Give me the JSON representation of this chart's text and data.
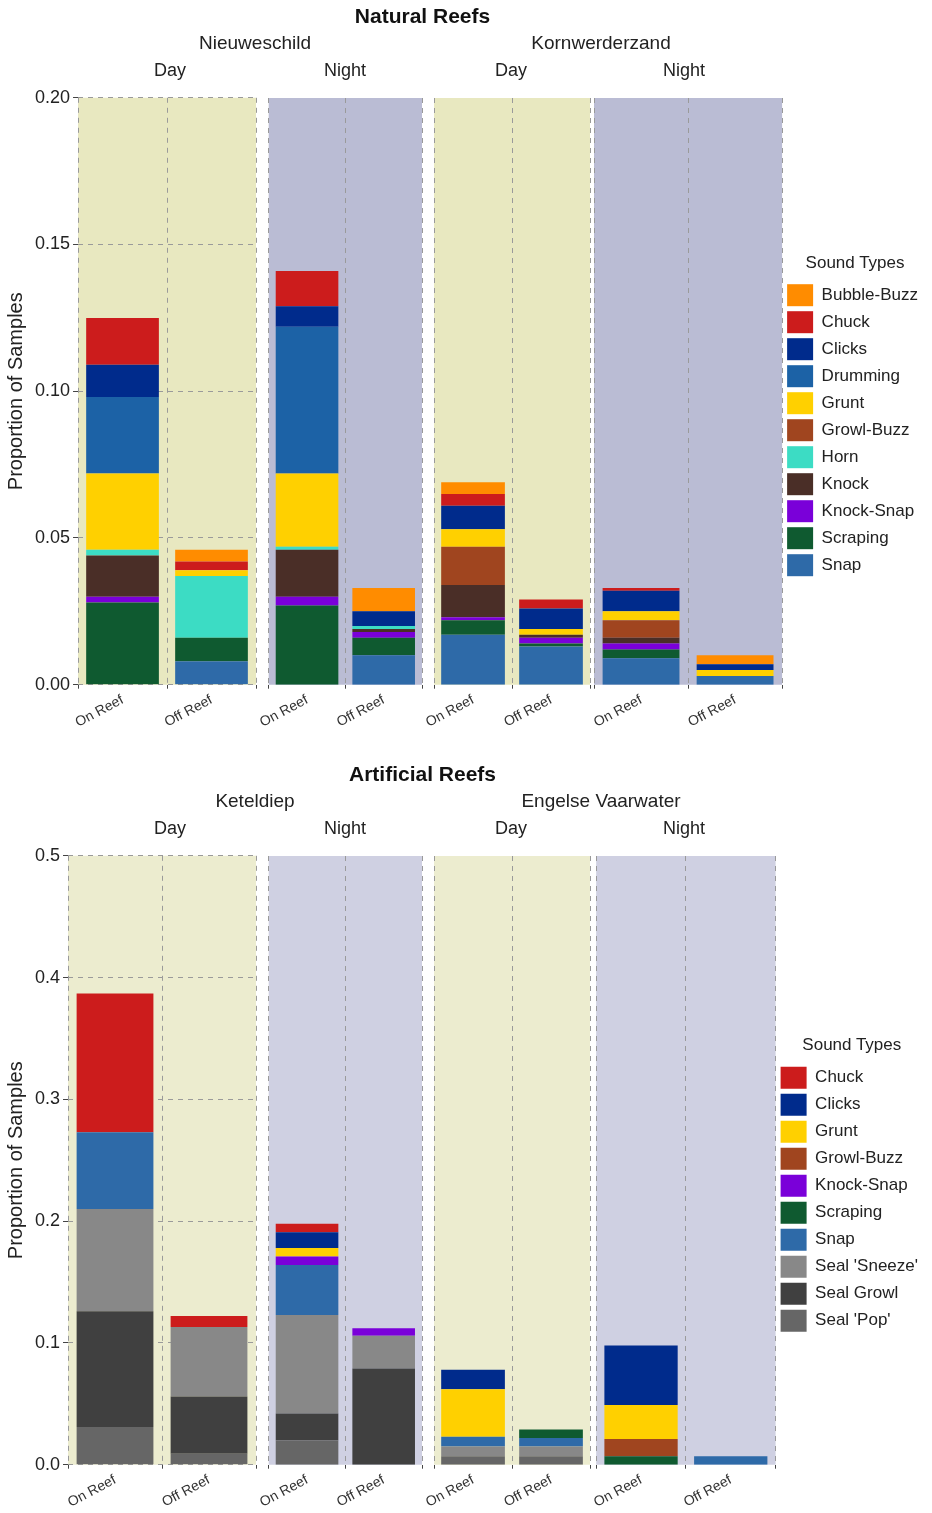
{
  "chart_data": [
    {
      "type": "bar",
      "stacked": true,
      "subtitle": "Nieuweschild",
      "annotations": [
        "Day"
      ],
      "ylabel": "Proportion of Samples",
      "categories": [
        "On Reef",
        "Off Reef"
      ],
      "ylim": [
        0,
        0.2
      ],
      "yticks": [
        {
          "value": 0,
          "label": "0.00"
        },
        {
          "value": 0.05,
          "label": "0.05"
        },
        {
          "value": 0.1,
          "label": "0.10"
        },
        {
          "value": 0.15,
          "label": "0.15"
        },
        {
          "value": 0.2,
          "label": "0.20"
        }
      ],
      "grid": true,
      "series": [
        {
          "color": "#2e6aa8",
          "values": [
            0,
            0.008
          ]
        },
        {
          "color": "#0f5a30",
          "values": [
            0.028,
            0.008
          ]
        },
        {
          "color": "#7a00d9",
          "values": [
            0.002,
            0
          ]
        },
        {
          "color": "#4a2e27",
          "values": [
            0.014,
            0
          ]
        },
        {
          "color": "#3cdcc4",
          "values": [
            0.002,
            0.021
          ]
        },
        {
          "color": "#a0451f",
          "values": [
            0,
            0
          ]
        },
        {
          "color": "#ffd000",
          "values": [
            0.026,
            0.002
          ]
        },
        {
          "color": "#1c62a6",
          "values": [
            0.026,
            0
          ]
        },
        {
          "color": "#002b8c",
          "values": [
            0.011,
            0
          ]
        },
        {
          "color": "#cc1c1c",
          "values": [
            0.016,
            0.003
          ]
        },
        {
          "color": "#ff8c00",
          "values": [
            0,
            0.004
          ]
        }
      ]
    },
    {
      "type": "bar",
      "stacked": true,
      "title": "Natural Reefs",
      "annotations": [
        "Night"
      ],
      "categories": [
        "On Reef",
        "Off Reef"
      ],
      "ylim": [
        0,
        0.2
      ],
      "yticks": [
        {
          "value": 0,
          "label": null
        },
        {
          "value": 0.05,
          "label": null
        },
        {
          "value": 0.1,
          "label": null
        },
        {
          "value": 0.15,
          "label": null
        },
        {
          "value": 0.2,
          "label": null
        }
      ],
      "grid": true,
      "tick_labels": "x",
      "series": [
        {
          "color": "#2e6aa8",
          "values": [
            0,
            0.01
          ]
        },
        {
          "color": "#0f5a30",
          "values": [
            0.027,
            0.006
          ]
        },
        {
          "color": "#7a00d9",
          "values": [
            0.003,
            0.002
          ]
        },
        {
          "color": "#4a2e27",
          "values": [
            0.016,
            0.001
          ]
        },
        {
          "color": "#3cdcc4",
          "values": [
            0.001,
            0.001
          ]
        },
        {
          "color": "#a0451f",
          "values": [
            0,
            0
          ]
        },
        {
          "color": "#ffd000",
          "values": [
            0.025,
            0
          ]
        },
        {
          "color": "#1c62a6",
          "values": [
            0.05,
            0
          ]
        },
        {
          "color": "#002b8c",
          "values": [
            0.007,
            0.005
          ]
        },
        {
          "color": "#cc1c1c",
          "values": [
            0.012,
            0
          ]
        },
        {
          "color": "#ff8c00",
          "values": [
            0,
            0.008
          ]
        }
      ]
    },
    {
      "type": "bar",
      "stacked": true,
      "subtitle": "Kornwerderzand",
      "annotations": [
        "Day"
      ],
      "categories": [
        "On Reef",
        "Off Reef"
      ],
      "ylim": [
        0,
        0.2
      ],
      "yticks": [
        {
          "value": 0,
          "label": null
        },
        {
          "value": 0.05,
          "label": null
        },
        {
          "value": 0.1,
          "label": null
        },
        {
          "value": 0.15,
          "label": null
        },
        {
          "value": 0.2,
          "label": null
        }
      ],
      "grid": true,
      "tick_labels": "x",
      "series": [
        {
          "color": "#2e6aa8",
          "values": [
            0.017,
            0.013
          ]
        },
        {
          "color": "#0f5a30",
          "values": [
            0.005,
            0.001
          ]
        },
        {
          "color": "#7a00d9",
          "values": [
            0.001,
            0.002
          ]
        },
        {
          "color": "#4a2e27",
          "values": [
            0.011,
            0.001
          ]
        },
        {
          "color": "#3cdcc4",
          "values": [
            0,
            0
          ]
        },
        {
          "color": "#a0451f",
          "values": [
            0.013,
            0
          ]
        },
        {
          "color": "#ffd000",
          "values": [
            0.006,
            0.002
          ]
        },
        {
          "color": "#1c62a6",
          "values": [
            0,
            0
          ]
        },
        {
          "color": "#002b8c",
          "values": [
            0.008,
            0.007
          ]
        },
        {
          "color": "#cc1c1c",
          "values": [
            0.004,
            0.003
          ]
        },
        {
          "color": "#ff8c00",
          "values": [
            0.004,
            0
          ]
        }
      ]
    },
    {
      "type": "bar",
      "stacked": true,
      "annotations": [
        "Night"
      ],
      "legend": "right",
      "legend_title": "Sound Types",
      "categories": [
        "On Reef",
        "Off Reef"
      ],
      "ylim": [
        0,
        0.2
      ],
      "yticks": [
        {
          "value": 0,
          "label": null
        },
        {
          "value": 0.05,
          "label": null
        },
        {
          "value": 0.1,
          "label": null
        },
        {
          "value": 0.15,
          "label": null
        },
        {
          "value": 0.2,
          "label": null
        }
      ],
      "grid": true,
      "tick_labels": "x",
      "series": [
        {
          "name": "Snap",
          "color": "#2e6aa8",
          "values": [
            0.009,
            0.003
          ]
        },
        {
          "name": "Scraping",
          "color": "#0f5a30",
          "values": [
            0.003,
            0
          ]
        },
        {
          "name": "Knock-Snap",
          "color": "#7a00d9",
          "values": [
            0.002,
            0
          ]
        },
        {
          "name": "Knock",
          "color": "#4a2e27",
          "values": [
            0.002,
            0
          ]
        },
        {
          "name": "Horn",
          "color": "#3cdcc4",
          "values": [
            0,
            0
          ]
        },
        {
          "name": "Growl-Buzz",
          "color": "#a0451f",
          "values": [
            0.006,
            0
          ]
        },
        {
          "name": "Grunt",
          "color": "#ffd000",
          "values": [
            0.003,
            0.002
          ]
        },
        {
          "name": "Drumming",
          "color": "#1c62a6",
          "values": [
            0,
            0
          ]
        },
        {
          "name": "Clicks",
          "color": "#002b8c",
          "values": [
            0.007,
            0.002
          ]
        },
        {
          "name": "Chuck",
          "color": "#cc1c1c",
          "values": [
            0.001,
            0
          ]
        },
        {
          "name": "Bubble-Buzz",
          "color": "#ff8c00",
          "values": [
            0,
            0.003
          ]
        }
      ]
    },
    {
      "type": "bar",
      "stacked": true,
      "subtitle": "Keteldiep",
      "annotations": [
        "Day"
      ],
      "ylabel": "Proportion of Samples",
      "categories": [
        "On Reef",
        "Off Reef"
      ],
      "ylim": [
        0,
        0.5
      ],
      "yticks": [
        {
          "value": 0,
          "label": "0.0"
        },
        {
          "value": 0.1,
          "label": "0.1"
        },
        {
          "value": 0.2,
          "label": "0.2"
        },
        {
          "value": 0.3,
          "label": "0.3"
        },
        {
          "value": 0.4,
          "label": "0.4"
        },
        {
          "value": 0.5,
          "label": "0.5"
        }
      ],
      "grid": true,
      "series": [
        {
          "color": "#666666",
          "values": [
            0.031,
            0.009
          ]
        },
        {
          "color": "#404040",
          "values": [
            0.095,
            0.047
          ]
        },
        {
          "color": "#888888",
          "values": [
            0.084,
            0.057
          ]
        },
        {
          "color": "#2e6aa8",
          "values": [
            0.063,
            0
          ]
        },
        {
          "color": "#0f5a30",
          "values": [
            0,
            0
          ]
        },
        {
          "color": "#7a00d9",
          "values": [
            0,
            0
          ]
        },
        {
          "color": "#a0451f",
          "values": [
            0,
            0
          ]
        },
        {
          "color": "#ffd000",
          "values": [
            0,
            0
          ]
        },
        {
          "color": "#002b8c",
          "values": [
            0,
            0
          ]
        },
        {
          "color": "#cc1c1c",
          "values": [
            0.114,
            0.009
          ]
        }
      ]
    },
    {
      "type": "bar",
      "stacked": true,
      "title": "Artificial Reefs",
      "annotations": [
        "Night"
      ],
      "categories": [
        "On Reef",
        "Off Reef"
      ],
      "ylim": [
        0,
        0.5
      ],
      "yticks": [
        {
          "value": 0,
          "label": null
        },
        {
          "value": 0.1,
          "label": null
        },
        {
          "value": 0.2,
          "label": null
        },
        {
          "value": 0.3,
          "label": null
        },
        {
          "value": 0.4,
          "label": null
        },
        {
          "value": 0.5,
          "label": null
        }
      ],
      "grid": true,
      "tick_labels": "x",
      "series": [
        {
          "color": "#666666",
          "values": [
            0.02,
            0
          ]
        },
        {
          "color": "#404040",
          "values": [
            0.022,
            0.079
          ]
        },
        {
          "color": "#888888",
          "values": [
            0.081,
            0.027
          ]
        },
        {
          "color": "#2e6aa8",
          "values": [
            0.041,
            0
          ]
        },
        {
          "color": "#0f5a30",
          "values": [
            0,
            0
          ]
        },
        {
          "color": "#7a00d9",
          "values": [
            0.007,
            0.006
          ]
        },
        {
          "color": "#a0451f",
          "values": [
            0,
            0
          ]
        },
        {
          "color": "#ffd000",
          "values": [
            0.007,
            0
          ]
        },
        {
          "color": "#002b8c",
          "values": [
            0.013,
            0
          ]
        },
        {
          "color": "#cc1c1c",
          "values": [
            0.007,
            0
          ]
        }
      ]
    },
    {
      "type": "bar",
      "stacked": true,
      "subtitle": "Engelse Vaarwater",
      "annotations": [
        "Day"
      ],
      "categories": [
        "On Reef",
        "Off Reef"
      ],
      "ylim": [
        0,
        0.5
      ],
      "yticks": [
        {
          "value": 0,
          "label": null
        },
        {
          "value": 0.1,
          "label": null
        },
        {
          "value": 0.2,
          "label": null
        },
        {
          "value": 0.3,
          "label": null
        },
        {
          "value": 0.4,
          "label": null
        },
        {
          "value": 0.5,
          "label": null
        }
      ],
      "grid": true,
      "tick_labels": "x",
      "series": [
        {
          "color": "#666666",
          "values": [
            0.007,
            0.007
          ]
        },
        {
          "color": "#404040",
          "values": [
            0,
            0
          ]
        },
        {
          "color": "#888888",
          "values": [
            0.008,
            0.008
          ]
        },
        {
          "color": "#2e6aa8",
          "values": [
            0.008,
            0.007
          ]
        },
        {
          "color": "#0f5a30",
          "values": [
            0,
            0.007
          ]
        },
        {
          "color": "#7a00d9",
          "values": [
            0,
            0
          ]
        },
        {
          "color": "#a0451f",
          "values": [
            0,
            0
          ]
        },
        {
          "color": "#ffd000",
          "values": [
            0.039,
            0
          ]
        },
        {
          "color": "#002b8c",
          "values": [
            0.016,
            0
          ]
        },
        {
          "color": "#cc1c1c",
          "values": [
            0,
            0
          ]
        }
      ]
    },
    {
      "type": "bar",
      "stacked": true,
      "annotations": [
        "Night"
      ],
      "legend": "right",
      "legend_title": "Sound Types",
      "categories": [
        "On Reef",
        "Off Reef"
      ],
      "ylim": [
        0,
        0.5
      ],
      "yticks": [
        {
          "value": 0,
          "label": null
        },
        {
          "value": 0.1,
          "label": null
        },
        {
          "value": 0.2,
          "label": null
        },
        {
          "value": 0.3,
          "label": null
        },
        {
          "value": 0.4,
          "label": null
        },
        {
          "value": 0.5,
          "label": null
        }
      ],
      "grid": true,
      "tick_labels": "x",
      "series": [
        {
          "name": "Seal 'Pop'",
          "color": "#666666",
          "values": [
            0,
            0
          ]
        },
        {
          "name": "Seal Growl",
          "color": "#404040",
          "values": [
            0,
            0
          ]
        },
        {
          "name": "Seal 'Sneeze'",
          "color": "#888888",
          "values": [
            0,
            0
          ]
        },
        {
          "name": "Snap",
          "color": "#2e6aa8",
          "values": [
            0,
            0.007
          ]
        },
        {
          "name": "Scraping",
          "color": "#0f5a30",
          "values": [
            0.007,
            0
          ]
        },
        {
          "name": "Knock-Snap",
          "color": "#7a00d9",
          "values": [
            0,
            0
          ]
        },
        {
          "name": "Growl-Buzz",
          "color": "#a0451f",
          "values": [
            0.014,
            0
          ]
        },
        {
          "name": "Grunt",
          "color": "#ffd000",
          "values": [
            0.028,
            0
          ]
        },
        {
          "name": "Clicks",
          "color": "#002b8c",
          "values": [
            0.049,
            0
          ]
        },
        {
          "name": "Chuck",
          "color": "#cc1c1c",
          "values": [
            0,
            0
          ]
        }
      ]
    }
  ]
}
